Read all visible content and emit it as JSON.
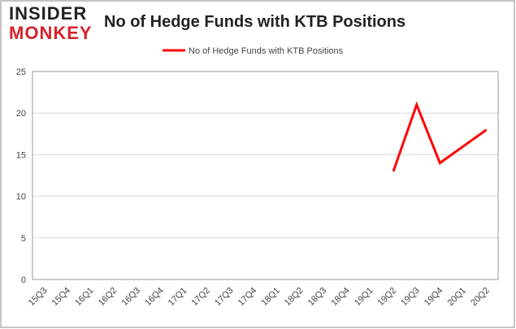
{
  "logo": {
    "top": "INSIDER",
    "bottom": "MONKEY"
  },
  "chart_data": {
    "type": "line",
    "title": "No of Hedge Funds with KTB Positions",
    "categories": [
      "15Q3",
      "15Q4",
      "16Q1",
      "16Q2",
      "16Q3",
      "16Q4",
      "17Q1",
      "17Q2",
      "17Q3",
      "17Q4",
      "18Q1",
      "18Q2",
      "18Q3",
      "18Q4",
      "19Q1",
      "19Q2",
      "19Q3",
      "19Q4",
      "20Q1",
      "20Q2"
    ],
    "series": [
      {
        "name": "No of Hedge Funds with KTB Positions",
        "color": "#ff0000",
        "values": [
          null,
          null,
          null,
          null,
          null,
          null,
          null,
          null,
          null,
          null,
          null,
          null,
          null,
          null,
          null,
          13,
          21,
          14,
          16,
          18
        ]
      }
    ],
    "ylim": [
      0,
      25
    ],
    "yticks": [
      0,
      5,
      10,
      15,
      20,
      25
    ],
    "grid": true,
    "legend": "top"
  }
}
